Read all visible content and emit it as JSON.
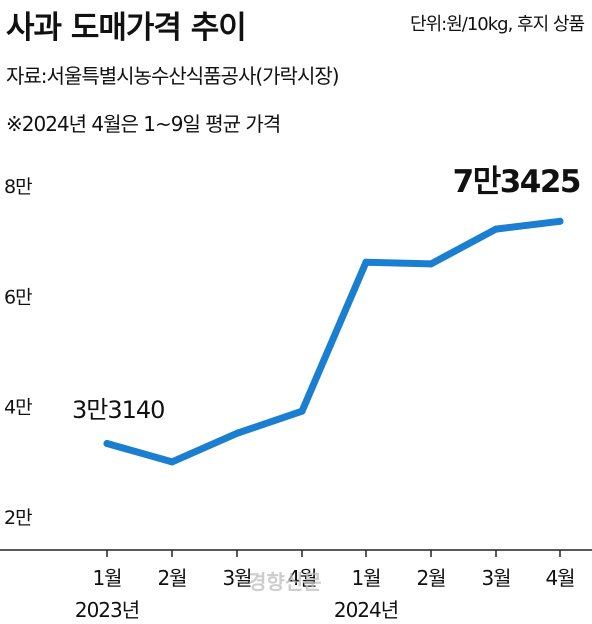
{
  "header": {
    "title": "사과 도매가격 추이",
    "unit": "단위:원/10kg, 후지 상품",
    "source": "자료:서울특별시농수산식품공사(가락시장)",
    "note": "※2024년 4월은 1~9일 평균 가격"
  },
  "watermark": "경향신문",
  "colors": {
    "line": "#1a7fd0",
    "axis": "#222222",
    "text": "#111111"
  },
  "chart_data": {
    "type": "line",
    "title": "사과 도매가격 추이",
    "xlabel": "",
    "ylabel": "",
    "categories": [
      "2023-01",
      "2023-02",
      "2023-03",
      "2023-04",
      "2024-01",
      "2024-02",
      "2024-03",
      "2024-04"
    ],
    "x_tick_labels": [
      "1월",
      "2월",
      "3월",
      "4월",
      "1월",
      "2월",
      "3월",
      "4월"
    ],
    "x_group_labels": [
      {
        "label": "2023년",
        "index": 0
      },
      {
        "label": "2024년",
        "index": 4
      }
    ],
    "y_tick_values": [
      20000,
      40000,
      60000,
      80000
    ],
    "y_tick_labels": [
      "2만",
      "4만",
      "6만",
      "8만"
    ],
    "ylim": [
      15000,
      85000
    ],
    "grid": false,
    "series": [
      {
        "values": [
          33140,
          29800,
          35000,
          39000,
          66000,
          65700,
          72000,
          73425
        ]
      }
    ],
    "annotations": [
      {
        "text": "3만3140",
        "index": 0
      },
      {
        "text": "7만3425",
        "index": 7
      }
    ]
  }
}
